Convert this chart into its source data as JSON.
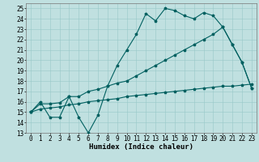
{
  "xlabel": "Humidex (Indice chaleur)",
  "bg_color": "#c0e0e0",
  "line_color": "#006060",
  "grid_color": "#98c8c8",
  "xlim": [
    -0.5,
    23.5
  ],
  "ylim": [
    13,
    25.5
  ],
  "xticks": [
    0,
    1,
    2,
    3,
    4,
    5,
    6,
    7,
    8,
    9,
    10,
    11,
    12,
    13,
    14,
    15,
    16,
    17,
    18,
    19,
    20,
    21,
    22,
    23
  ],
  "yticks": [
    13,
    14,
    15,
    16,
    17,
    18,
    19,
    20,
    21,
    22,
    23,
    24,
    25
  ],
  "line1_x": [
    0,
    1,
    2,
    3,
    4,
    5,
    6,
    7,
    8,
    9,
    10,
    11,
    12,
    13,
    14,
    15,
    16,
    17,
    18,
    19,
    20,
    21,
    22,
    23
  ],
  "line1_y": [
    15.0,
    16.0,
    14.5,
    14.5,
    16.5,
    14.5,
    13.0,
    14.7,
    17.5,
    19.5,
    21.0,
    22.5,
    24.5,
    23.8,
    25.0,
    24.8,
    24.3,
    24.0,
    24.6,
    24.3,
    23.2,
    21.5,
    19.8,
    17.3
  ],
  "line2_x": [
    0,
    1,
    2,
    3,
    4,
    5,
    6,
    7,
    8,
    9,
    10,
    11,
    12,
    13,
    14,
    15,
    16,
    17,
    18,
    19,
    20,
    21,
    22,
    23
  ],
  "line2_y": [
    15.0,
    15.8,
    15.8,
    15.9,
    16.5,
    16.5,
    17.0,
    17.2,
    17.5,
    17.8,
    18.0,
    18.5,
    19.0,
    19.5,
    20.0,
    20.5,
    21.0,
    21.5,
    22.0,
    22.5,
    23.2,
    21.5,
    19.8,
    17.3
  ],
  "line3_x": [
    0,
    1,
    2,
    3,
    4,
    5,
    6,
    7,
    8,
    9,
    10,
    11,
    12,
    13,
    14,
    15,
    16,
    17,
    18,
    19,
    20,
    21,
    22,
    23
  ],
  "line3_y": [
    15.0,
    15.3,
    15.4,
    15.5,
    15.7,
    15.8,
    16.0,
    16.1,
    16.2,
    16.3,
    16.5,
    16.6,
    16.7,
    16.8,
    16.9,
    17.0,
    17.1,
    17.2,
    17.3,
    17.4,
    17.5,
    17.5,
    17.6,
    17.7
  ],
  "marker": "*",
  "markersize": 2.5,
  "linewidth": 0.8,
  "xlabel_fontsize": 6.5,
  "tick_fontsize": 5.5
}
